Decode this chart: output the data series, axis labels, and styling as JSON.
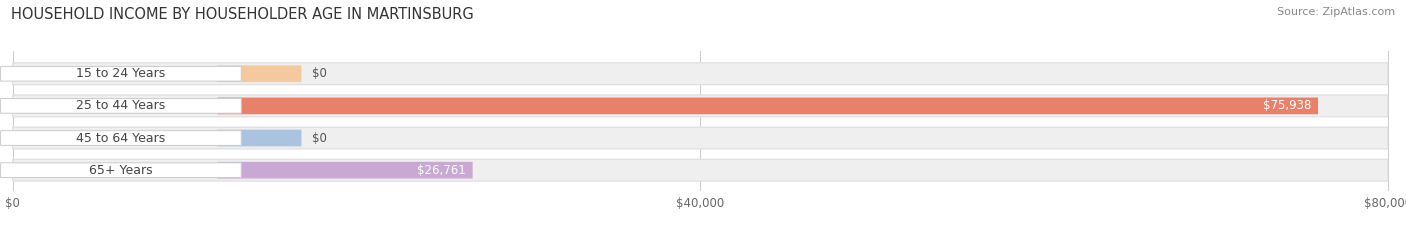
{
  "title": "HOUSEHOLD INCOME BY HOUSEHOLDER AGE IN MARTINSBURG",
  "source": "Source: ZipAtlas.com",
  "categories": [
    "15 to 24 Years",
    "25 to 44 Years",
    "45 to 64 Years",
    "65+ Years"
  ],
  "values": [
    0,
    75938,
    0,
    26761
  ],
  "labels": [
    "$0",
    "$75,938",
    "$0",
    "$26,761"
  ],
  "bar_colors": [
    "#f5c9a0",
    "#e8806a",
    "#aac4e0",
    "#c9a8d4"
  ],
  "xmax": 80000,
  "xticks": [
    0,
    40000,
    80000
  ],
  "xticklabels": [
    "$0",
    "$40,000",
    "$80,000"
  ],
  "title_fontsize": 10.5,
  "source_fontsize": 8,
  "label_fontsize": 8.5,
  "category_fontsize": 9,
  "track_color": "#efefef",
  "track_border": "#dddddd",
  "pill_color": "#ffffff",
  "pill_border": "#cccccc"
}
